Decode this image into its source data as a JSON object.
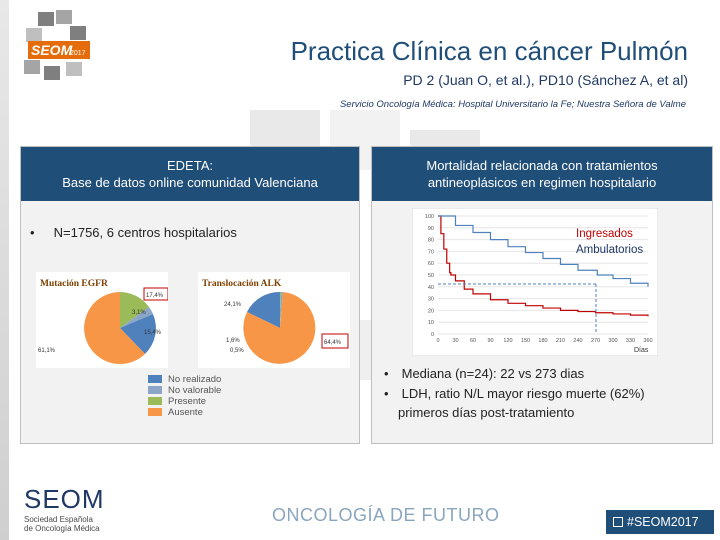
{
  "header": {
    "title": "Practica Clínica en cáncer Pulmón",
    "subtitle": "PD 2 (Juan O, et al.), PD10 (Sánchez A, et al)",
    "service": "Servicio Oncología Médica: Hospital Universitario la Fe; Nuestra Señora de Valme"
  },
  "logo": {
    "text": "SEOM",
    "year": "2017"
  },
  "left_panel": {
    "title_line1": "EDETA:",
    "title_line2": "Base de datos online comunidad Valenciana",
    "bullet": "N=1756, 6 centros hospitalarios"
  },
  "egfr_chart": {
    "title": "Mutación EGFR",
    "labels": [
      "17,4%",
      "3,1%",
      "15,4%",
      "61,1%"
    ]
  },
  "alk_chart": {
    "title": "Translocación ALK",
    "labels": [
      "24,1%",
      "1,6%",
      "0,5%",
      "64,4%"
    ]
  },
  "pie_legend": [
    {
      "label": "No realizado",
      "color": "#4f81bd"
    },
    {
      "label": "No valorable",
      "color": "#8ca6c7"
    },
    {
      "label": "Presente",
      "color": "#9bbb59"
    },
    {
      "label": "Ausente",
      "color": "#f79646"
    }
  ],
  "right_panel": {
    "title_line1": "Mortalidad relacionada con tratamientos",
    "title_line2": "antineoplásicos en regimen hospitalario",
    "bullets": [
      "Mediana (n=24): 22 vs 273 dias",
      "LDH, ratio N/L mayor riesgo muerte (62%)",
      "primeros días post-tratamiento"
    ]
  },
  "chart_data": {
    "type": "line",
    "xlabel": "Días",
    "ylabel": "",
    "x_ticks": [
      "0",
      "30",
      "60",
      "90",
      "120",
      "150",
      "180",
      "210",
      "240",
      "270",
      "300",
      "330",
      "360"
    ],
    "y_ticks": [
      "0",
      "10",
      "20",
      "30",
      "40",
      "50",
      "60",
      "70",
      "80",
      "90",
      "100"
    ],
    "series": [
      {
        "name": "Ingresados",
        "color": "#c00000",
        "x": [
          0,
          5,
          10,
          15,
          20,
          22,
          30,
          45,
          60,
          90,
          120,
          150,
          180,
          210,
          240,
          270,
          300,
          330,
          360
        ],
        "y": [
          100,
          85,
          72,
          60,
          52,
          50,
          45,
          38,
          34,
          29,
          26,
          24,
          22,
          20,
          19,
          18,
          17,
          16,
          15
        ]
      },
      {
        "name": "Ambulatorios",
        "color": "#4f81bd",
        "x": [
          0,
          30,
          60,
          90,
          120,
          150,
          180,
          210,
          240,
          273,
          300,
          330,
          360
        ],
        "y": [
          100,
          92,
          86,
          80,
          74,
          69,
          64,
          59,
          54,
          50,
          47,
          43,
          40
        ]
      }
    ],
    "xlim": [
      0,
      360
    ],
    "ylim": [
      0,
      100
    ]
  },
  "footer": {
    "seom": "SEOM",
    "seom_sub1": "Sociedad Española",
    "seom_sub2": "de Oncología Médica",
    "slogan": "ONCOLOGÍA DE FUTURO",
    "hashtag": "#SEOM2017"
  }
}
